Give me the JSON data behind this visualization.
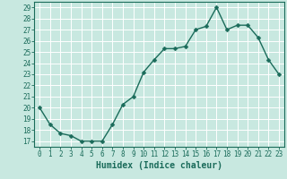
{
  "x": [
    0,
    1,
    2,
    3,
    4,
    5,
    6,
    7,
    8,
    9,
    10,
    11,
    12,
    13,
    14,
    15,
    16,
    17,
    18,
    19,
    20,
    21,
    22,
    23
  ],
  "y": [
    20,
    18.5,
    17.7,
    17.5,
    17.0,
    17.0,
    17.0,
    18.5,
    20.3,
    21.0,
    23.2,
    24.3,
    25.3,
    25.3,
    25.5,
    27.0,
    27.3,
    29.0,
    27.0,
    27.4,
    27.4,
    26.3,
    24.3,
    23.0
  ],
  "line_color": "#1a6b5a",
  "marker_color": "#1a6b5a",
  "bg_color": "#c8e8e0",
  "grid_color": "#ffffff",
  "xlabel": "Humidex (Indice chaleur)",
  "ylabel_ticks": [
    17,
    18,
    19,
    20,
    21,
    22,
    23,
    24,
    25,
    26,
    27,
    28,
    29
  ],
  "ylim": [
    16.5,
    29.5
  ],
  "xlim": [
    -0.5,
    23.5
  ],
  "tick_label_color": "#1a6b5a",
  "axis_label_color": "#1a6b5a",
  "xlabel_fontsize": 7,
  "tick_fontsize": 5.5,
  "linewidth": 1.0,
  "markersize": 2.5
}
